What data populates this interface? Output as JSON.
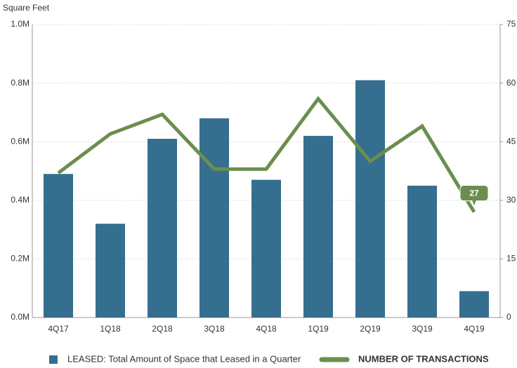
{
  "chart_data": {
    "type": "bar-line",
    "y_axis_label": "Square Feet",
    "categories": [
      "4Q17",
      "1Q18",
      "2Q18",
      "3Q18",
      "4Q18",
      "1Q19",
      "2Q19",
      "3Q19",
      "4Q19"
    ],
    "series": [
      {
        "name": "LEASED: Total Amount of Space that Leased in a Quarter",
        "type": "bar",
        "color": "#356e8e",
        "values": [
          490000,
          320000,
          610000,
          680000,
          470000,
          620000,
          810000,
          450000,
          90000
        ]
      },
      {
        "name": "NUMBER OF TRANSACTIONS",
        "type": "line",
        "axis": "y2",
        "color": "#6b8e4e",
        "values": [
          37,
          47,
          52,
          38,
          38,
          56,
          40,
          49,
          27
        ]
      }
    ],
    "ylim": [
      0,
      1000000
    ],
    "yticks": [
      {
        "value": 0,
        "label": "0.0M"
      },
      {
        "value": 200000,
        "label": "0.2M"
      },
      {
        "value": 400000,
        "label": "0.4M"
      },
      {
        "value": 600000,
        "label": "0.6M"
      },
      {
        "value": 800000,
        "label": "0.8M"
      },
      {
        "value": 1000000,
        "label": "1.0M"
      }
    ],
    "y2lim": [
      0,
      75
    ],
    "y2ticks": [
      0,
      15,
      30,
      45,
      60,
      75
    ],
    "grid": true
  }
}
